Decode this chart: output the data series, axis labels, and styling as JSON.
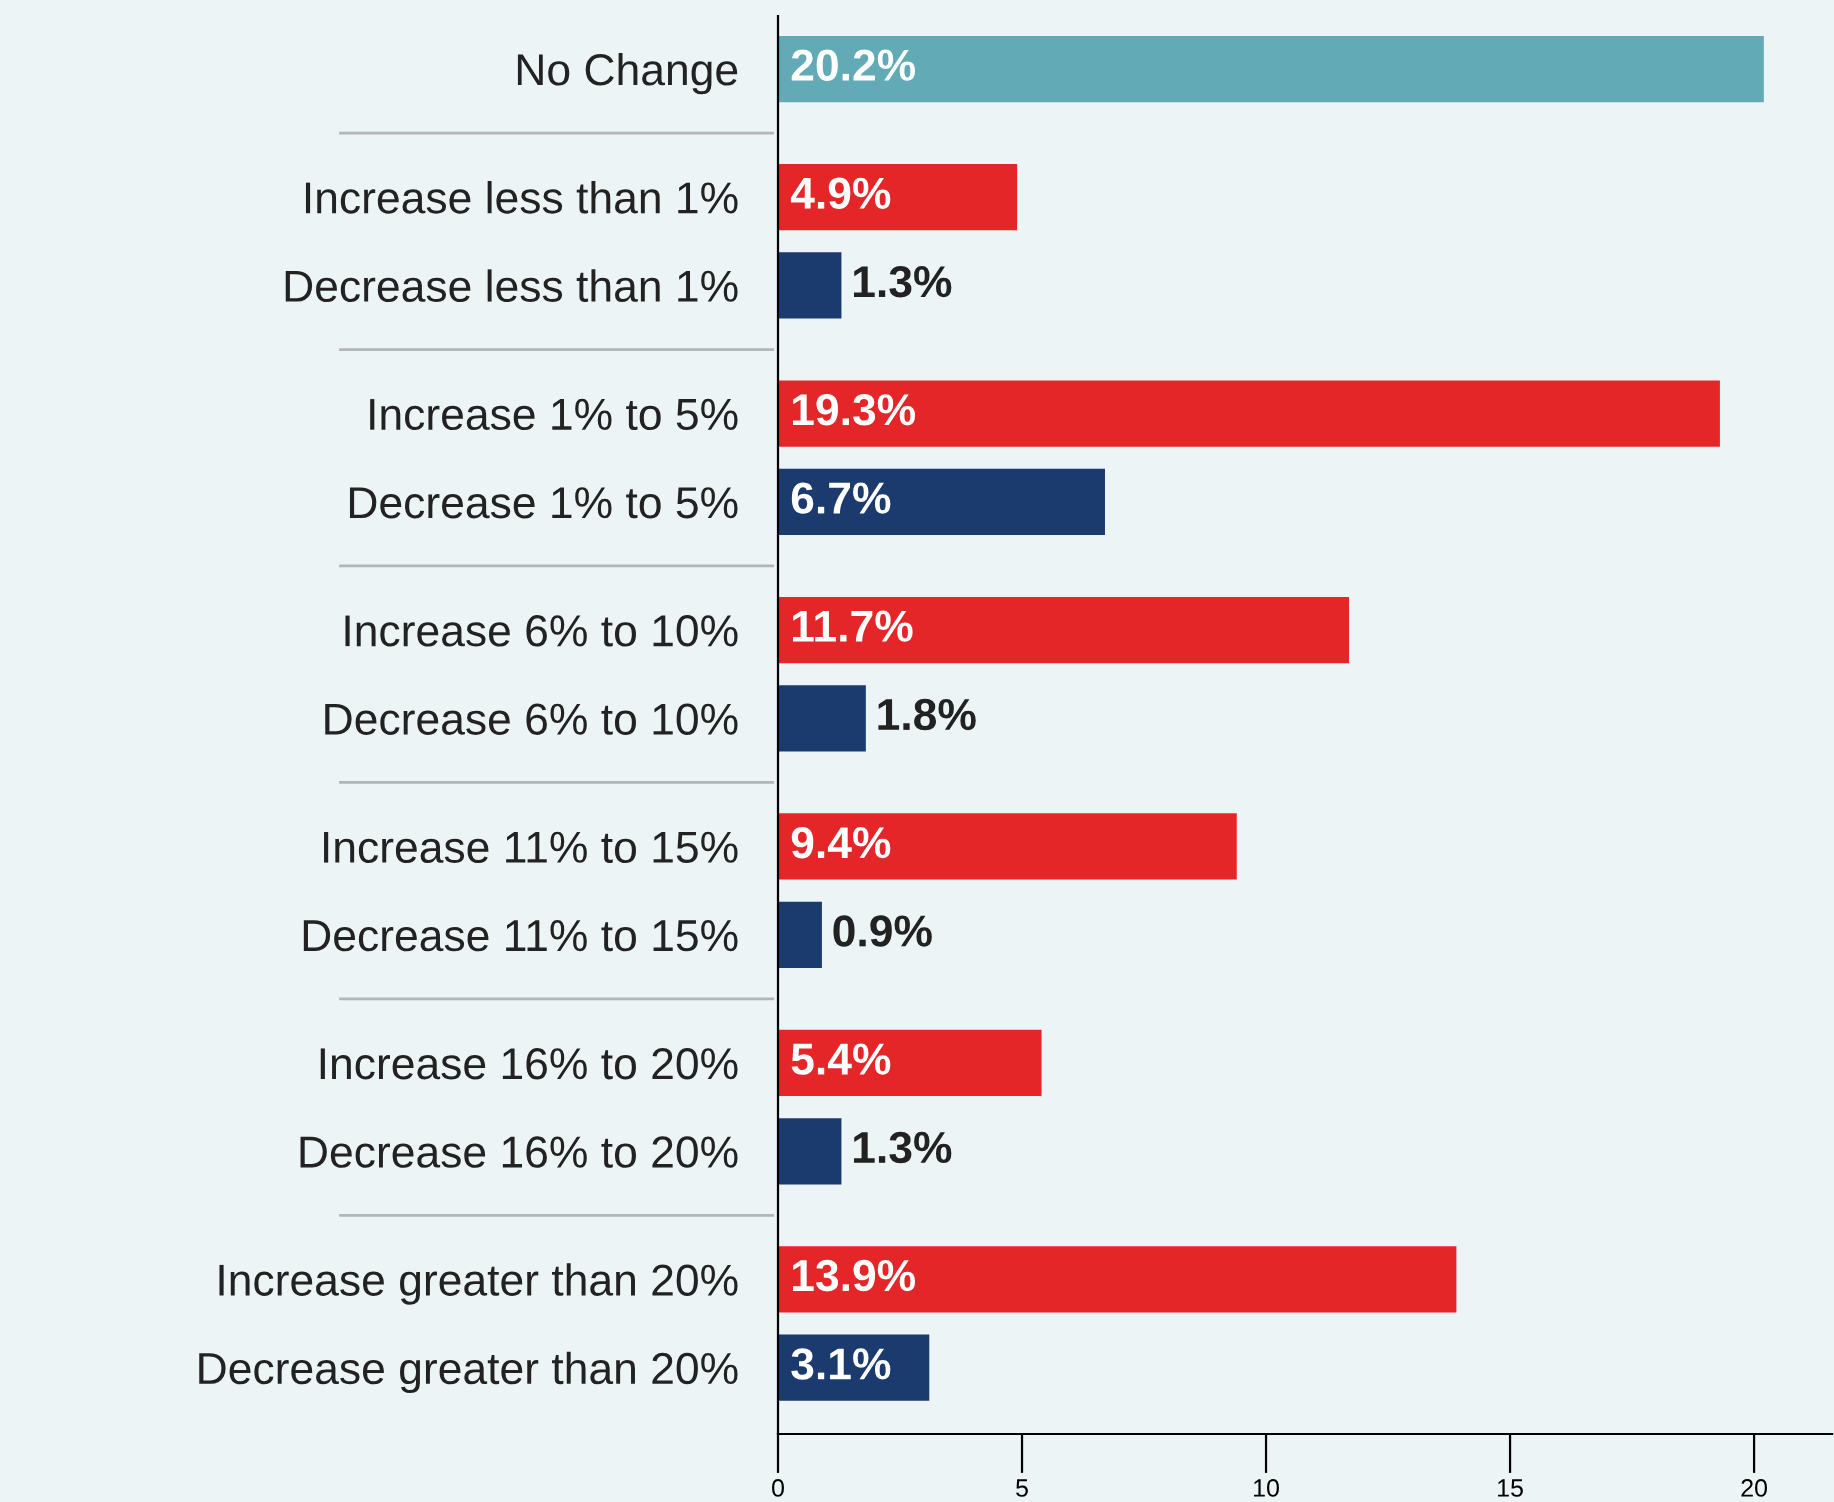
{
  "chart_data": {
    "type": "bar",
    "orientation": "horizontal",
    "categories": [
      "No Change",
      "Increase less than 1%",
      "Decrease less than 1%",
      "Increase 1% to 5%",
      "Decrease 1% to 5%",
      "Increase 6% to 10%",
      "Decrease 6% to 10%",
      "Increase 11% to 15%",
      "Decrease 11% to 15%",
      "Increase 16% to 20%",
      "Decrease 16% to 20%",
      "Increase greater than 20%",
      "Decrease greater than 20%"
    ],
    "values": [
      20.2,
      4.9,
      1.3,
      19.3,
      6.7,
      11.7,
      1.8,
      9.4,
      0.9,
      5.4,
      1.3,
      13.9,
      3.1
    ],
    "colors": [
      "#62aab5",
      "#e52629",
      "#1b3a6e",
      "#e52629",
      "#1b3a6e",
      "#e52629",
      "#1b3a6e",
      "#e52629",
      "#1b3a6e",
      "#e52629",
      "#1b3a6e",
      "#e52629",
      "#1b3a6e"
    ],
    "value_labels": [
      "20.2%",
      "4.9%",
      "1.3%",
      "19.3%",
      "6.7%",
      "11.7%",
      "1.8%",
      "9.4%",
      "0.9%",
      "5.4%",
      "1.3%",
      "13.9%",
      "3.1%"
    ],
    "xlim": [
      0,
      21.6
    ],
    "xticks": [
      0,
      5,
      10,
      15,
      20
    ],
    "grid": false,
    "legend": false
  }
}
